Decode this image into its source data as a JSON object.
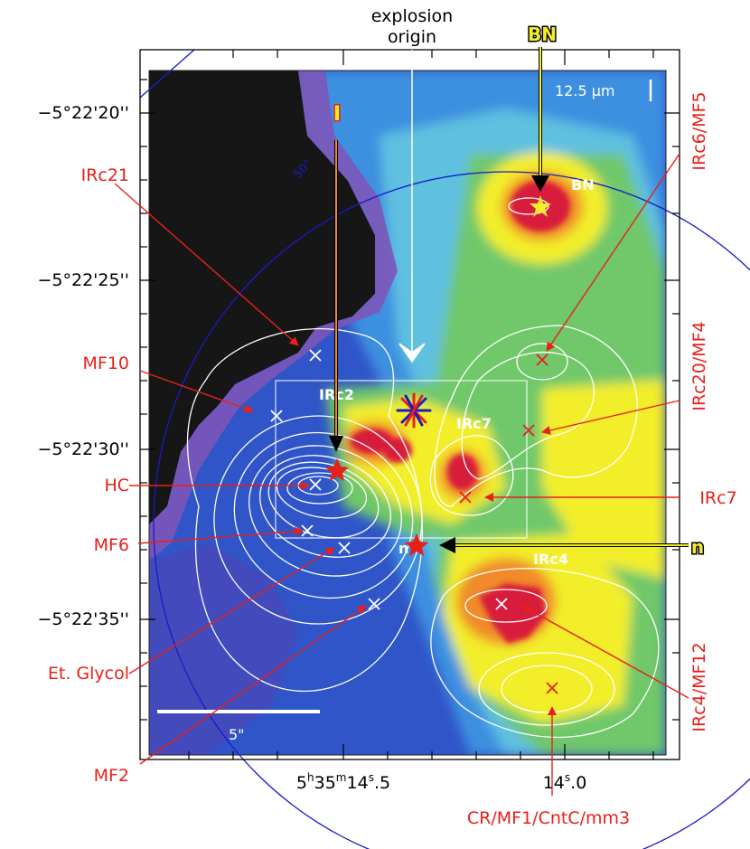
{
  "colors": {
    "label_red": "#e8201a",
    "arrow_red": "#e8201a",
    "contour_white": "#ffffff",
    "circle_blue": "#1a1ac8",
    "highlight_yellow": "#f2ee2a",
    "bg_black": "#161616"
  },
  "header": {
    "explosion_line1": "explosion",
    "explosion_line2": "origin",
    "bn_tag": "BN",
    "i_tag": "I",
    "n_tag": "n"
  },
  "image_labels": {
    "scale_wavelength": "12.5 µm",
    "bn": "BN",
    "irc2": "IRc2",
    "irc7": "IRc7",
    "irc4": "IRc4",
    "n": "n",
    "radius": "50\"",
    "scalebar": "5\""
  },
  "axes": {
    "dec_ticks": [
      "−5°22'20''",
      "−5°22'25''",
      "−5°22'30''",
      "−5°22'35''"
    ],
    "ra_label_1": "5h35m14s.5",
    "ra_label_1_parts": {
      "h": "5",
      "hsup": "h",
      "m": "35",
      "msup": "m",
      "s": "14",
      "ssup": "s",
      "frac": ".5"
    },
    "ra_label_2_parts": {
      "s": "14",
      "ssup": "s",
      "frac": ".0"
    }
  },
  "left_labels": [
    "IRc21",
    "MF10",
    "HC",
    "MF6",
    "Et. Glycol",
    "MF2"
  ],
  "right_labels": [
    "IRc6/MF5",
    "IRc20/MF4",
    "IRc7",
    "IRc4/MF12"
  ],
  "bottom_label": "CR/MF1/CntC/mm3"
}
